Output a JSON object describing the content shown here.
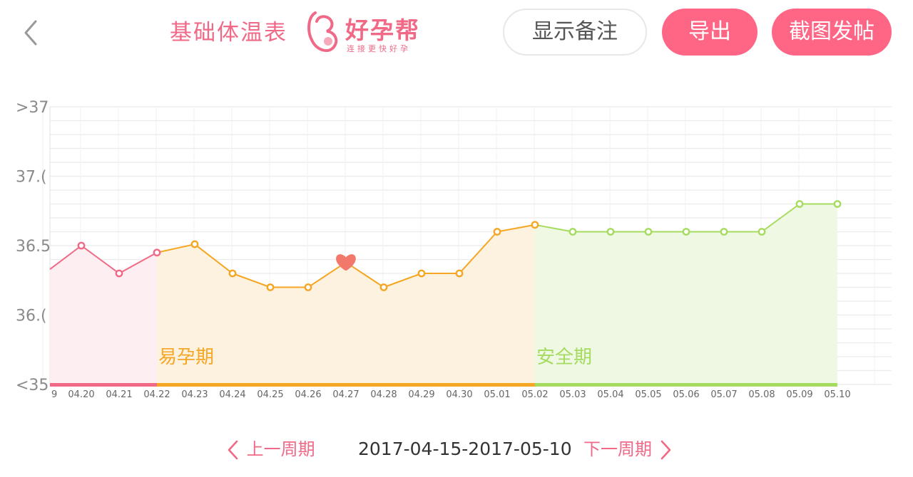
{
  "header": {
    "title": "基础体温表",
    "brand_name": "好孕帮",
    "brand_slogan": "连接更快好孕",
    "show_notes_label": "显示备注",
    "export_label": "导出",
    "screenshot_post_label": "截图发帖"
  },
  "colors": {
    "accent": "#ff6584",
    "menstrual": "#f06a87",
    "fertile": "#f5a623",
    "safe": "#a5dc5f"
  },
  "icons": {
    "back": "chevron-left-icon",
    "ovulation": "heart-icon",
    "prev": "chevron-left-icon",
    "next": "chevron-right-icon"
  },
  "chart_data": {
    "type": "line",
    "ytick_labels": [
      ">37.",
      "37.(",
      "36.5",
      "36.(",
      "<35."
    ],
    "ytick_values": [
      37.5,
      37.0,
      36.5,
      36.0,
      35.5
    ],
    "ylim": [
      35.5,
      37.5
    ],
    "grid": true,
    "left_cut_label": "9",
    "categories": [
      "04.20",
      "04.21",
      "04.22",
      "04.23",
      "04.24",
      "04.25",
      "04.26",
      "04.27",
      "04.28",
      "04.29",
      "04.30",
      "05.01",
      "05.02",
      "05.03",
      "05.04",
      "05.05",
      "05.06",
      "05.07",
      "05.08",
      "05.09",
      "05.10"
    ],
    "left_cut_value": 36.33,
    "values": [
      36.5,
      36.3,
      36.45,
      36.51,
      36.3,
      36.2,
      36.2,
      36.38,
      36.2,
      36.3,
      36.3,
      36.6,
      36.65,
      36.6,
      36.6,
      36.6,
      36.6,
      36.6,
      36.6,
      36.8,
      36.8
    ],
    "ovulation_date": "04.27",
    "periods": [
      {
        "name": "menstrual",
        "label": "",
        "from": "04.20",
        "to": "04.22"
      },
      {
        "name": "fertile",
        "label": "易孕期",
        "from": "04.22",
        "to": "05.02"
      },
      {
        "name": "safe",
        "label": "安全期",
        "from": "05.02",
        "to": "05.10"
      }
    ]
  },
  "footer": {
    "prev_label": "上一周期",
    "date_range": "2017-04-15-2017-05-10",
    "next_label": "下一周期"
  }
}
